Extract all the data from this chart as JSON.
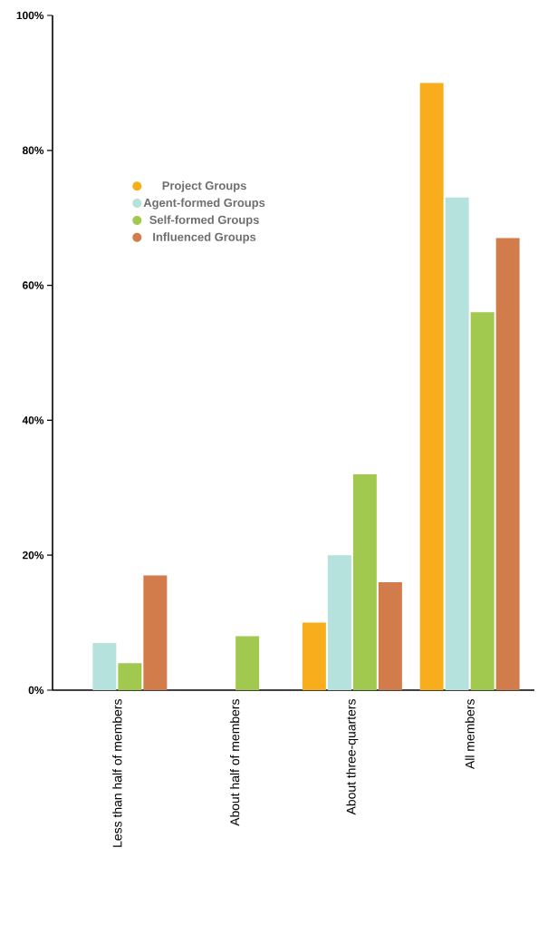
{
  "chart_data": {
    "type": "bar",
    "categories": [
      "Less than half of members",
      "About half of members",
      "About three-quarters",
      "All  members"
    ],
    "series": [
      {
        "name": "Project Groups",
        "color": "#f8ad1d",
        "values": [
          0,
          0,
          10,
          90
        ]
      },
      {
        "name": "Agent-formed Groups",
        "color": "#b5e2dd",
        "values": [
          7,
          0,
          20,
          73
        ]
      },
      {
        "name": "Self-formed Groups",
        "color": "#a2c94f",
        "values": [
          4,
          8,
          32,
          56
        ]
      },
      {
        "name": "Influenced Groups",
        "color": "#d27b4b",
        "values": [
          17,
          0,
          16,
          67
        ]
      }
    ],
    "ylim": [
      0,
      100
    ],
    "yticks": [
      {
        "value": 0,
        "label": "0%"
      },
      {
        "value": 20,
        "label": "20%"
      },
      {
        "value": 40,
        "label": "40%"
      },
      {
        "value": 60,
        "label": "60%"
      },
      {
        "value": 80,
        "label": "80%"
      },
      {
        "value": 100,
        "label": "100%"
      }
    ],
    "grid": false,
    "legend": "top left"
  }
}
